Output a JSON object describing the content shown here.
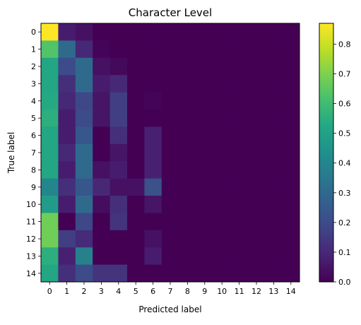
{
  "chart_data": {
    "type": "heatmap",
    "title": "Character Level",
    "xlabel": "Predicted label",
    "ylabel": "True label",
    "x_categories": [
      "0",
      "1",
      "2",
      "3",
      "4",
      "5",
      "6",
      "7",
      "8",
      "9",
      "10",
      "11",
      "12",
      "13",
      "14"
    ],
    "y_categories": [
      "0",
      "1",
      "2",
      "3",
      "4",
      "5",
      "6",
      "7",
      "8",
      "9",
      "10",
      "11",
      "12",
      "13",
      "14"
    ],
    "colormap": "viridis",
    "color_range": [
      0,
      0.87
    ],
    "colorbar_ticks": [
      "0.0",
      "0.1",
      "0.2",
      "0.3",
      "0.4",
      "0.5",
      "0.6",
      "0.7",
      "0.8"
    ],
    "colorbar_tick_values": [
      0.0,
      0.1,
      0.2,
      0.3,
      0.4,
      0.5,
      0.6,
      0.7,
      0.8
    ],
    "matrix": [
      [
        0.87,
        0.07,
        0.04,
        0,
        0,
        0,
        0,
        0,
        0,
        0,
        0,
        0,
        0,
        0,
        0
      ],
      [
        0.63,
        0.3,
        0.1,
        0.01,
        0,
        0,
        0,
        0,
        0,
        0,
        0,
        0,
        0,
        0,
        0
      ],
      [
        0.52,
        0.2,
        0.3,
        0.04,
        0.02,
        0,
        0,
        0,
        0,
        0,
        0,
        0,
        0,
        0,
        0
      ],
      [
        0.52,
        0.12,
        0.3,
        0.07,
        0.1,
        0,
        0,
        0,
        0,
        0,
        0,
        0,
        0,
        0,
        0
      ],
      [
        0.53,
        0.1,
        0.19,
        0.05,
        0.16,
        0,
        0.01,
        0,
        0,
        0,
        0,
        0,
        0,
        0,
        0
      ],
      [
        0.55,
        0.07,
        0.2,
        0.05,
        0.16,
        0,
        0,
        0,
        0,
        0,
        0,
        0,
        0,
        0,
        0
      ],
      [
        0.52,
        0.07,
        0.24,
        0,
        0.12,
        0,
        0.08,
        0,
        0,
        0,
        0,
        0,
        0,
        0,
        0
      ],
      [
        0.52,
        0.1,
        0.3,
        0,
        0.05,
        0,
        0.08,
        0,
        0,
        0,
        0,
        0,
        0,
        0,
        0
      ],
      [
        0.52,
        0.07,
        0.3,
        0.04,
        0.07,
        0,
        0.08,
        0,
        0,
        0,
        0,
        0,
        0,
        0,
        0
      ],
      [
        0.4,
        0.12,
        0.24,
        0.1,
        0.04,
        0.04,
        0.22,
        0,
        0,
        0,
        0,
        0,
        0,
        0,
        0
      ],
      [
        0.48,
        0.07,
        0.3,
        0.03,
        0.12,
        0,
        0.05,
        0,
        0,
        0,
        0,
        0,
        0,
        0,
        0
      ],
      [
        0.68,
        0,
        0.19,
        0,
        0.13,
        0,
        0,
        0,
        0,
        0,
        0,
        0,
        0,
        0,
        0
      ],
      [
        0.68,
        0.16,
        0.11,
        0,
        0,
        0,
        0.04,
        0,
        0,
        0,
        0,
        0,
        0,
        0,
        0
      ],
      [
        0.55,
        0.08,
        0.38,
        0,
        0,
        0,
        0.07,
        0,
        0,
        0,
        0,
        0,
        0,
        0,
        0
      ],
      [
        0.52,
        0.12,
        0.2,
        0.13,
        0.13,
        0,
        0,
        0,
        0,
        0,
        0,
        0,
        0,
        0,
        0
      ]
    ]
  }
}
